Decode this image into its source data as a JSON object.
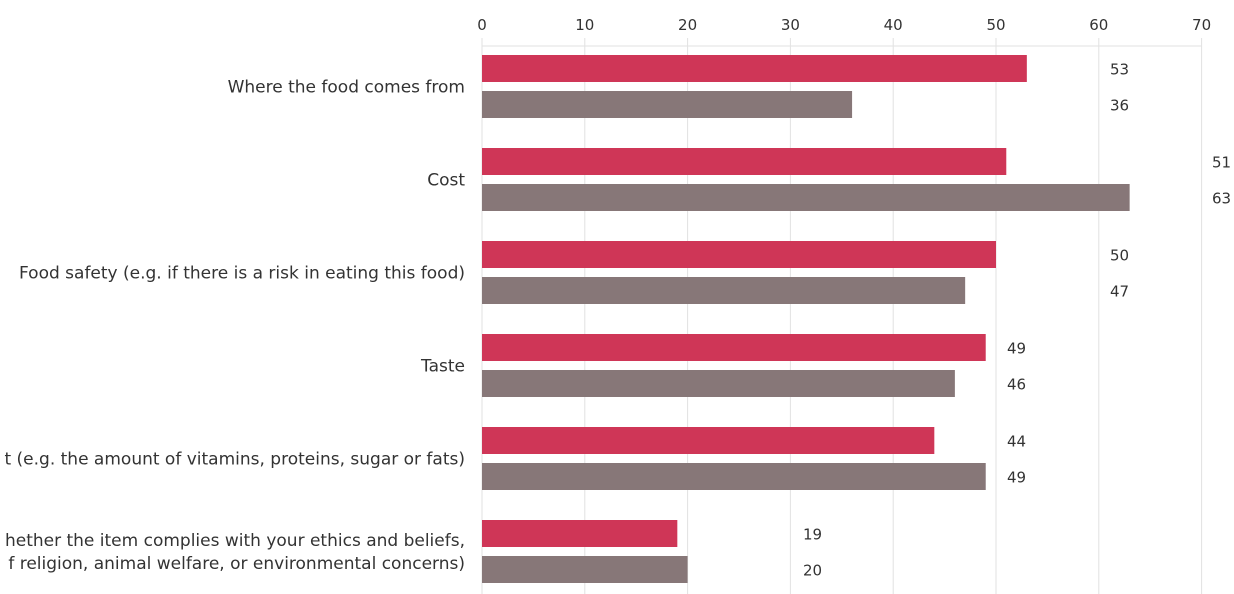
{
  "chart_data": {
    "type": "bar",
    "orientation": "horizontal",
    "xlim": [
      0,
      70
    ],
    "xticks": [
      "0",
      "10",
      "20",
      "30",
      "40",
      "50",
      "60",
      "70"
    ],
    "grid": true,
    "categories": [
      [
        "Where the food comes from"
      ],
      [
        "Cost"
      ],
      [
        "Food safety (e.g. if there is a risk in eating this food)"
      ],
      [
        "Taste"
      ],
      [
        "t (e.g. the amount of vitamins, proteins, sugar or fats)"
      ],
      [
        "hether the item complies with your ethics and beliefs,",
        "f religion, animal welfare, or environmental concerns)"
      ]
    ],
    "series": [
      {
        "values": [
          53,
          51,
          50,
          49,
          44,
          19
        ],
        "color": "#cf3657"
      },
      {
        "values": [
          36,
          63,
          47,
          46,
          49,
          20
        ],
        "color": "#877778"
      }
    ]
  }
}
